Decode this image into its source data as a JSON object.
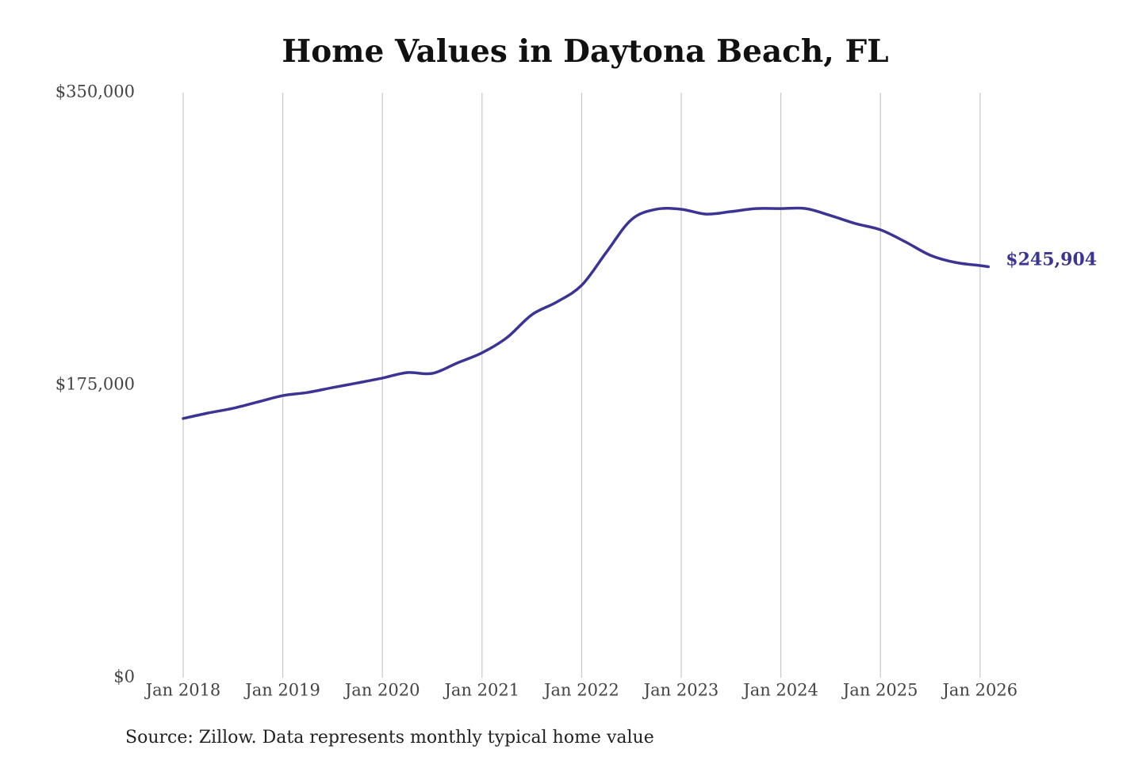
{
  "chart_data": {
    "type": "line",
    "title": "Home Values in Daytona Beach, FL",
    "source": "Source: Zillow. Data represents monthly typical home value",
    "color": "#3b3494",
    "grid": "x",
    "x": [
      "2018-01",
      "2018-04",
      "2018-07",
      "2018-10",
      "2019-01",
      "2019-04",
      "2019-07",
      "2019-10",
      "2020-01",
      "2020-04",
      "2020-07",
      "2020-10",
      "2021-01",
      "2021-04",
      "2021-07",
      "2021-10",
      "2022-01",
      "2022-04",
      "2022-07",
      "2022-10",
      "2023-01",
      "2023-04",
      "2023-07",
      "2023-10",
      "2024-01",
      "2024-04",
      "2024-07",
      "2024-10",
      "2025-01",
      "2025-04",
      "2025-07",
      "2025-10",
      "2026-01",
      "2026-02"
    ],
    "values": [
      155100,
      158400,
      161200,
      165000,
      168800,
      170700,
      173600,
      176400,
      179300,
      182600,
      182100,
      188300,
      194400,
      203500,
      217200,
      224800,
      234800,
      254700,
      274100,
      280300,
      280300,
      277400,
      278900,
      280700,
      280700,
      280700,
      276500,
      271700,
      268000,
      260800,
      252800,
      248500,
      246600,
      245904
    ],
    "value_labels": [
      null,
      null,
      null,
      null,
      null,
      null,
      null,
      null,
      null,
      null,
      null,
      null,
      null,
      null,
      null,
      null,
      null,
      null,
      null,
      null,
      null,
      null,
      null,
      null,
      null,
      null,
      null,
      null,
      null,
      null,
      null,
      null,
      null,
      "$245,904"
    ],
    "xlim": [
      "2018-01",
      "2026-02"
    ],
    "xticks": [
      {
        "value": "2018-01",
        "label": "Jan 2018"
      },
      {
        "value": "2019-01",
        "label": "Jan 2019"
      },
      {
        "value": "2020-01",
        "label": "Jan 2020"
      },
      {
        "value": "2021-01",
        "label": "Jan 2021"
      },
      {
        "value": "2022-01",
        "label": "Jan 2022"
      },
      {
        "value": "2023-01",
        "label": "Jan 2023"
      },
      {
        "value": "2024-01",
        "label": "Jan 2024"
      },
      {
        "value": "2025-01",
        "label": "Jan 2025"
      },
      {
        "value": "2026-01",
        "label": "Jan 2026"
      }
    ],
    "ylim": [
      0,
      350000
    ],
    "yticks": [
      {
        "value": 0,
        "label": "$0"
      },
      {
        "value": 175000,
        "label": "$175,000"
      },
      {
        "value": 350000,
        "label": "$350,000"
      }
    ]
  }
}
